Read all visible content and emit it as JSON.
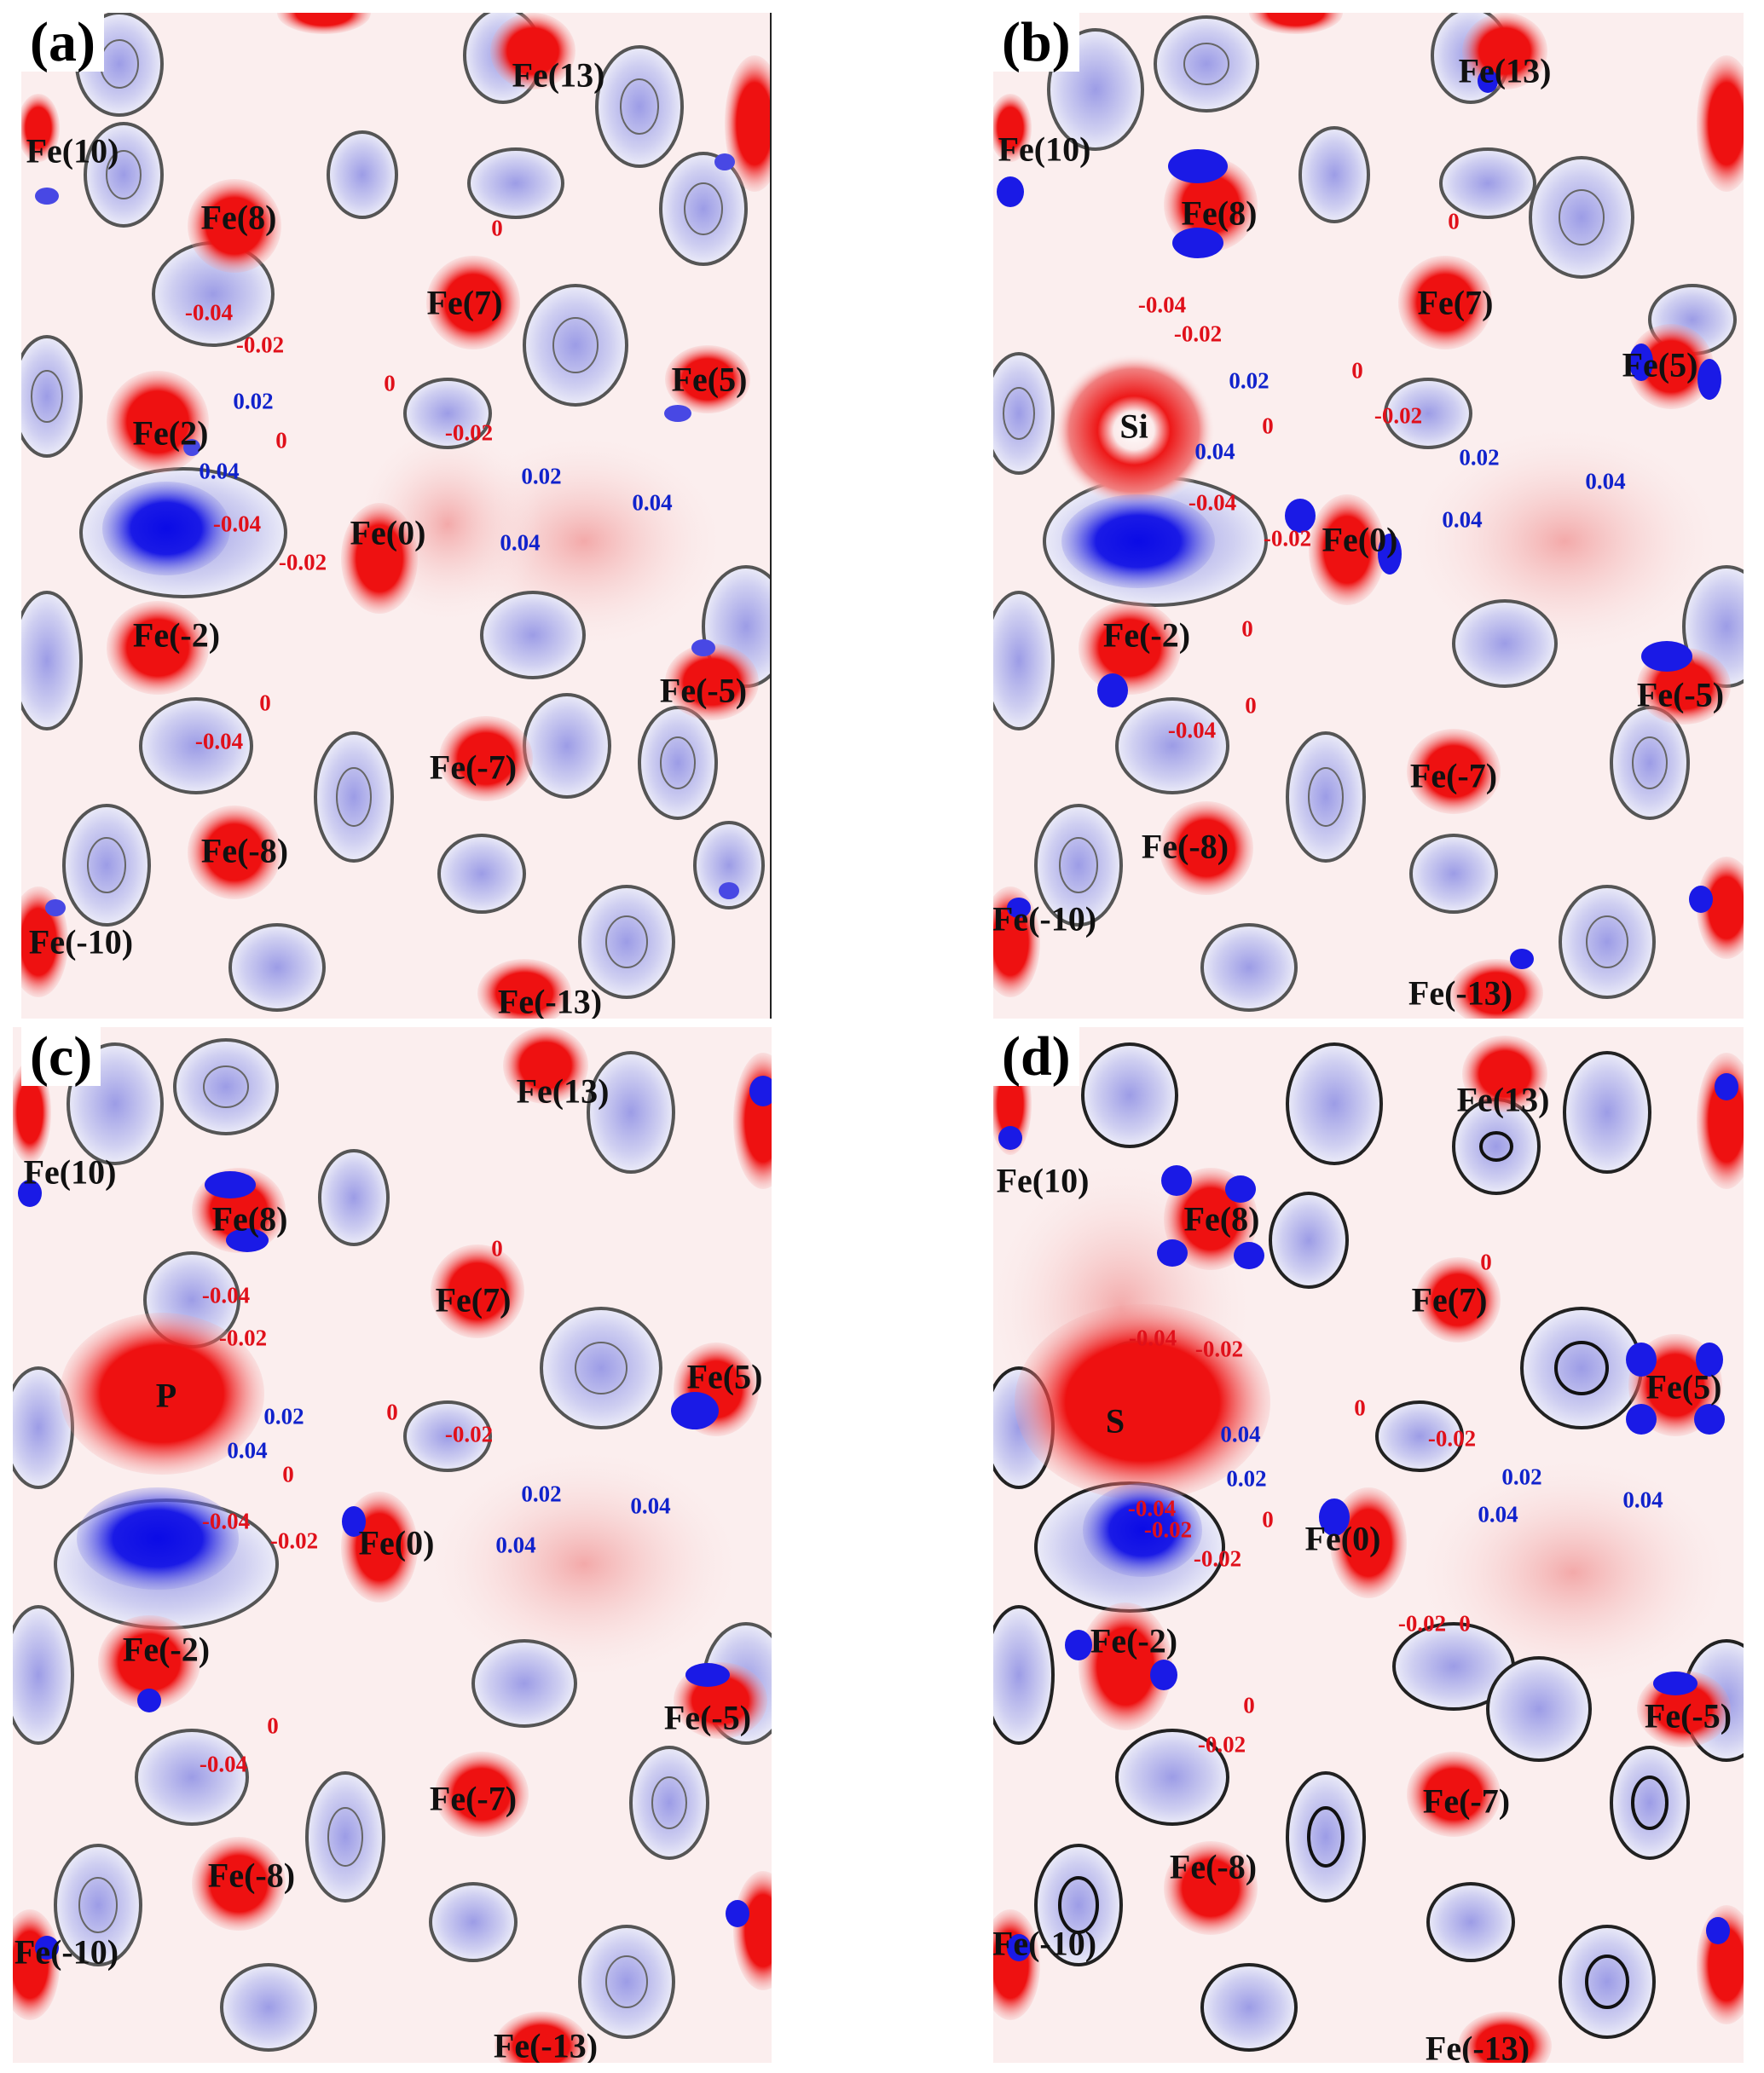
{
  "colors": {
    "positive": "#ee1111",
    "negative": "#1a1ae6",
    "pink": "#f4b6b6",
    "lavender": "#c8c8ee",
    "background": "#fbeeee",
    "contour": "#555555"
  },
  "panels": [
    {
      "label": "(a)",
      "atoms": [
        "Fe(13)",
        "Fe(10)",
        "Fe(8)",
        "Fe(7)",
        "Fe(5)",
        "Fe(2)",
        "Fe(0)",
        "Fe(-2)",
        "Fe(-5)",
        "Fe(-7)",
        "Fe(-8)",
        "Fe(-10)",
        "Fe(-13)"
      ],
      "contours": [
        "0",
        "-0.04",
        "-0.02",
        "0",
        "0.02",
        "0",
        "-0.02",
        "0.04",
        "0.02",
        "0.04",
        "-0.04",
        "-0.02",
        "0.04",
        "0",
        "-0.04"
      ]
    },
    {
      "label": "(b)",
      "atoms": [
        "Fe(13)",
        "Fe(10)",
        "Fe(8)",
        "Fe(7)",
        "Fe(5)",
        "Si",
        "Fe(0)",
        "Fe(-2)",
        "Fe(-5)",
        "Fe(-7)",
        "Fe(-8)",
        "Fe(-10)",
        "Fe(-13)"
      ],
      "contours": [
        "0",
        "-0.04",
        "-0.02",
        "0",
        "0.02",
        "0",
        "-0.02",
        "0.04",
        "0.02",
        "0.04",
        "-0.04",
        "-0.02",
        "0.04",
        "0",
        "0",
        "-0.04"
      ]
    },
    {
      "label": "(c)",
      "atoms": [
        "Fe(13)",
        "Fe(10)",
        "Fe(8)",
        "Fe(7)",
        "Fe(5)",
        "P",
        "Fe(0)",
        "Fe(-2)",
        "Fe(-5)",
        "Fe(-7)",
        "Fe(-8)",
        "Fe(-10)",
        "Fe(-13)"
      ],
      "contours": [
        "0",
        "-0.04",
        "-0.02",
        "0",
        "0.02",
        "0.04",
        "0",
        "-0.02",
        "0.02",
        "0.04",
        "0.04",
        "-0.04",
        "-0.02",
        "0",
        "-0.04"
      ]
    },
    {
      "label": "(d)",
      "atoms": [
        "Fe(13)",
        "Fe(10)",
        "Fe(8)",
        "Fe(7)",
        "Fe(5)",
        "S",
        "Fe(0)",
        "Fe(-2)",
        "Fe(-5)",
        "Fe(-7)",
        "Fe(-8)",
        "Fe(-10)",
        "Fe(-13)"
      ],
      "contours": [
        "0",
        "-0.04",
        "-0.02",
        "0",
        "0.04",
        "0.02",
        "-0.02",
        "0.02",
        "0.04",
        "0.04",
        "-0.04",
        "-0.02",
        "0",
        "-0.02",
        "-0.02",
        "0",
        "0",
        "-0.02"
      ]
    }
  ]
}
